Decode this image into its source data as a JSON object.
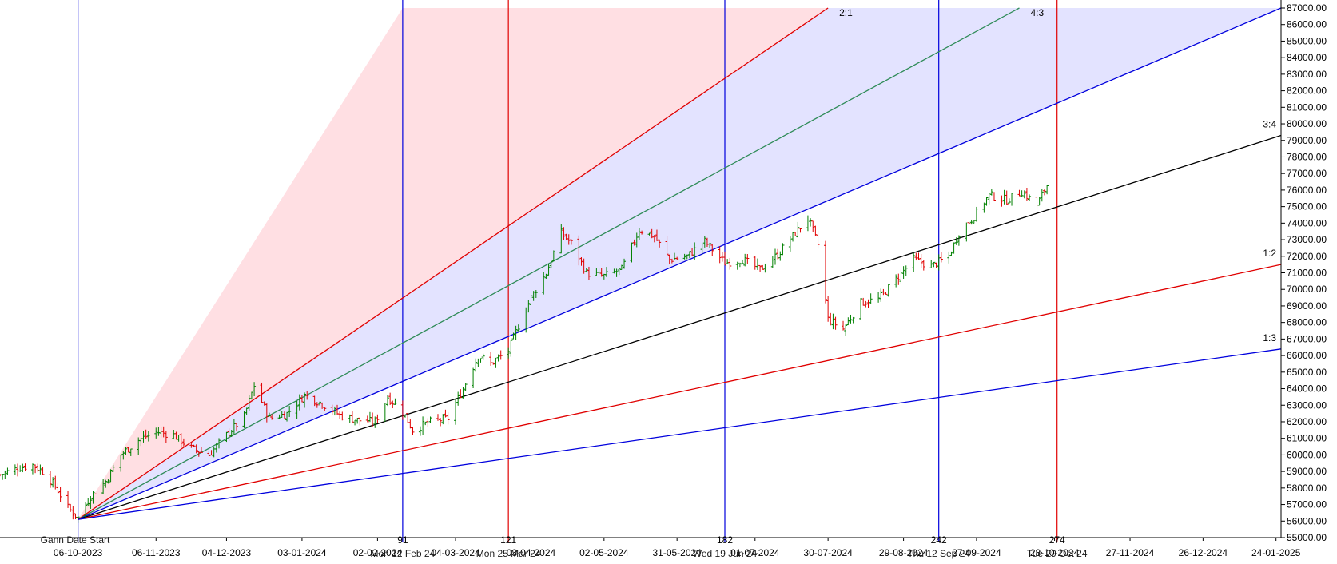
{
  "chart_data": {
    "type": "candlestick",
    "title": "",
    "xlabel": "",
    "ylabel": "",
    "ylim": [
      55000,
      87000
    ],
    "y_tick_step": 1000,
    "x_range": [
      "2023-09-05",
      "2025-01-26"
    ],
    "x_ticks": [
      {
        "date": "2023-10-06",
        "label": "06-10-2023"
      },
      {
        "date": "2023-11-06",
        "label": "06-11-2023"
      },
      {
        "date": "2023-12-04",
        "label": "04-12-2023"
      },
      {
        "date": "2024-01-03",
        "label": "03-01-2024"
      },
      {
        "date": "2024-02-02",
        "label": "02-02-2024"
      },
      {
        "date": "2024-03-04",
        "label": "04-03-2024"
      },
      {
        "date": "2024-04-03",
        "label": "03-04-2024"
      },
      {
        "date": "2024-05-02",
        "label": "02-05-2024"
      },
      {
        "date": "2024-05-31",
        "label": "31-05-2024"
      },
      {
        "date": "2024-07-01",
        "label": "01-07-2024"
      },
      {
        "date": "2024-07-30",
        "label": "30-07-2024"
      },
      {
        "date": "2024-08-29",
        "label": "29-08-2024"
      },
      {
        "date": "2024-09-27",
        "label": "27-09-2024"
      },
      {
        "date": "2024-10-28",
        "label": "28-10-2024"
      },
      {
        "date": "2024-11-27",
        "label": "27-11-2024"
      },
      {
        "date": "2024-12-26",
        "label": "26-12-2024"
      },
      {
        "date": "2025-01-24",
        "label": "24-01-2025"
      }
    ],
    "gann_origin": {
      "date": "2023-10-06",
      "value": 56100,
      "label": "Gann Date Start"
    },
    "gann_fan": [
      {
        "ratio": "2:1",
        "end_date": "2024-07-30",
        "end_value": 87000,
        "color": "#e00000",
        "label": "2:1"
      },
      {
        "ratio": "4:3",
        "end_date": "2024-10-14",
        "end_value": 87000,
        "color": "#2e8b57",
        "label": "4:3"
      },
      {
        "ratio": "1:1",
        "end_date": "2025-01-26",
        "end_value": 87000,
        "color": "#0000dd",
        "label": ""
      },
      {
        "ratio": "3:4",
        "end_date": "2025-01-26",
        "end_value": 79300,
        "color": "#000000",
        "label": "3:4"
      },
      {
        "ratio": "1:2",
        "end_date": "2025-01-26",
        "end_value": 71500,
        "color": "#e00000",
        "label": "1:2"
      },
      {
        "ratio": "1:3",
        "end_date": "2025-01-26",
        "end_value": 66400,
        "color": "#0000dd",
        "label": "1:3"
      }
    ],
    "zones": [
      {
        "from": "steep",
        "to": "2:1",
        "color": "#ffc0c8"
      },
      {
        "from": "2:1",
        "to": "1:1",
        "color": "#c8c8ff"
      }
    ],
    "steep_edge": {
      "end_date": "2024-02-12",
      "end_value": 87000
    },
    "cycle_lines": [
      {
        "date": "2023-10-06",
        "color": "#0000dd",
        "count": "",
        "label": ""
      },
      {
        "date": "2024-02-12",
        "color": "#0000dd",
        "count": "91",
        "label": "Mon 12 Feb 24"
      },
      {
        "date": "2024-03-25",
        "color": "#e00000",
        "count": "121",
        "label": "Mon 25 Mar 24"
      },
      {
        "date": "2024-06-19",
        "color": "#0000dd",
        "count": "182",
        "label": "Wed 19 Jun 24"
      },
      {
        "date": "2024-09-12",
        "color": "#0000dd",
        "count": "242",
        "label": "Thu 12 Sep 24"
      },
      {
        "date": "2024-10-29",
        "color": "#e00000",
        "count": "274",
        "label": "Tue 29 Oct 24"
      }
    ],
    "candle_colors": {
      "up": "#008000",
      "down": "#e00000"
    },
    "price_path": [
      {
        "date": "2023-09-05",
        "close": 58800
      },
      {
        "date": "2023-09-12",
        "close": 59200
      },
      {
        "date": "2023-09-18",
        "close": 59400
      },
      {
        "date": "2023-09-22",
        "close": 59000
      },
      {
        "date": "2023-09-27",
        "close": 58100
      },
      {
        "date": "2023-10-02",
        "close": 56800
      },
      {
        "date": "2023-10-06",
        "close": 56200
      },
      {
        "date": "2023-10-11",
        "close": 57500
      },
      {
        "date": "2023-10-17",
        "close": 58400
      },
      {
        "date": "2023-10-23",
        "close": 60000
      },
      {
        "date": "2023-10-30",
        "close": 60900
      },
      {
        "date": "2023-11-06",
        "close": 61400
      },
      {
        "date": "2023-11-13",
        "close": 61200
      },
      {
        "date": "2023-11-20",
        "close": 60400
      },
      {
        "date": "2023-11-27",
        "close": 60000
      },
      {
        "date": "2023-12-04",
        "close": 61200
      },
      {
        "date": "2023-12-11",
        "close": 62300
      },
      {
        "date": "2023-12-15",
        "close": 64200
      },
      {
        "date": "2023-12-21",
        "close": 62200
      },
      {
        "date": "2023-12-28",
        "close": 62500
      },
      {
        "date": "2024-01-04",
        "close": 63600
      },
      {
        "date": "2024-01-11",
        "close": 63100
      },
      {
        "date": "2024-01-18",
        "close": 62400
      },
      {
        "date": "2024-01-25",
        "close": 62100
      },
      {
        "date": "2024-02-01",
        "close": 62000
      },
      {
        "date": "2024-02-06",
        "close": 63500
      },
      {
        "date": "2024-02-12",
        "close": 62600
      },
      {
        "date": "2024-02-16",
        "close": 61500
      },
      {
        "date": "2024-02-23",
        "close": 62000
      },
      {
        "date": "2024-03-01",
        "close": 62200
      },
      {
        "date": "2024-03-07",
        "close": 64000
      },
      {
        "date": "2024-03-13",
        "close": 66000
      },
      {
        "date": "2024-03-18",
        "close": 65500
      },
      {
        "date": "2024-03-25",
        "close": 66300
      },
      {
        "date": "2024-03-29",
        "close": 67800
      },
      {
        "date": "2024-04-03",
        "close": 69500
      },
      {
        "date": "2024-04-09",
        "close": 71000
      },
      {
        "date": "2024-04-15",
        "close": 73400
      },
      {
        "date": "2024-04-19",
        "close": 72800
      },
      {
        "date": "2024-04-25",
        "close": 71000
      },
      {
        "date": "2024-05-02",
        "close": 70800
      },
      {
        "date": "2024-05-09",
        "close": 71200
      },
      {
        "date": "2024-05-16",
        "close": 73600
      },
      {
        "date": "2024-05-22",
        "close": 73200
      },
      {
        "date": "2024-05-28",
        "close": 71800
      },
      {
        "date": "2024-06-04",
        "close": 72000
      },
      {
        "date": "2024-06-11",
        "close": 72900
      },
      {
        "date": "2024-06-19",
        "close": 71600
      },
      {
        "date": "2024-06-26",
        "close": 71800
      },
      {
        "date": "2024-07-03",
        "close": 71200
      },
      {
        "date": "2024-07-10",
        "close": 72100
      },
      {
        "date": "2024-07-17",
        "close": 73400
      },
      {
        "date": "2024-07-22",
        "close": 74300
      },
      {
        "date": "2024-07-26",
        "close": 72700
      },
      {
        "date": "2024-07-30",
        "close": 68200
      },
      {
        "date": "2024-08-05",
        "close": 67600
      },
      {
        "date": "2024-08-12",
        "close": 69200
      },
      {
        "date": "2024-08-19",
        "close": 69400
      },
      {
        "date": "2024-08-26",
        "close": 70600
      },
      {
        "date": "2024-09-02",
        "close": 71800
      },
      {
        "date": "2024-09-09",
        "close": 71400
      },
      {
        "date": "2024-09-16",
        "close": 72000
      },
      {
        "date": "2024-09-20",
        "close": 73400
      },
      {
        "date": "2024-09-26",
        "close": 74400
      },
      {
        "date": "2024-10-02",
        "close": 75700
      },
      {
        "date": "2024-10-09",
        "close": 75400
      },
      {
        "date": "2024-10-15",
        "close": 75900
      },
      {
        "date": "2024-10-21",
        "close": 75100
      },
      {
        "date": "2024-10-25",
        "close": 76300
      }
    ]
  }
}
